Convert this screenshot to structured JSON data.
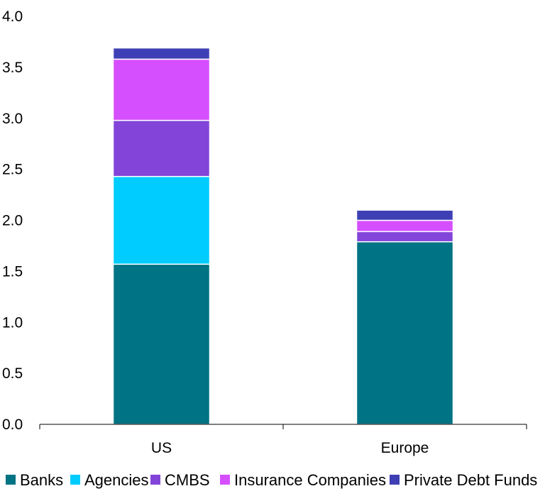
{
  "chart_data": {
    "type": "bar",
    "stacked": true,
    "title": "",
    "xlabel": "",
    "ylabel": "",
    "ylim": [
      0,
      4.0
    ],
    "yticks": [
      "0.0",
      "0.5",
      "1.0",
      "1.5",
      "2.0",
      "2.5",
      "3.0",
      "3.5",
      "4.0"
    ],
    "categories": [
      "US",
      "Europe"
    ],
    "series": [
      {
        "name": "Banks",
        "color": "#007384",
        "values": [
          1.57,
          1.79
        ]
      },
      {
        "name": "Agencies",
        "color": "#00CCFF",
        "values": [
          0.86,
          0.0
        ]
      },
      {
        "name": "CMBS",
        "color": "#8344D9",
        "values": [
          0.55,
          0.1
        ]
      },
      {
        "name": "Insurance Companies",
        "color": "#D64FFF",
        "values": [
          0.6,
          0.11
        ]
      },
      {
        "name": "Private Debt Funds",
        "color": "#3F3FB5",
        "values": [
          0.11,
          0.1
        ]
      }
    ],
    "legend_position": "bottom",
    "grid": false
  }
}
